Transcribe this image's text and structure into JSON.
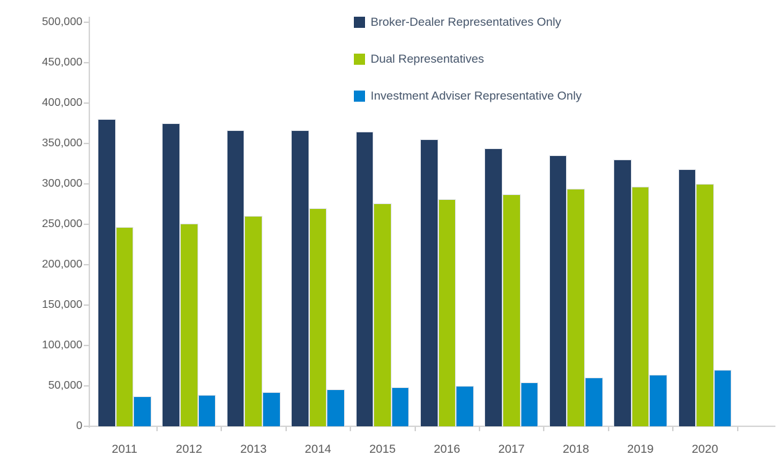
{
  "chart_data": {
    "type": "bar",
    "title": "",
    "xlabel": "",
    "ylabel": "",
    "categories": [
      "2011",
      "2012",
      "2013",
      "2014",
      "2015",
      "2016",
      "2017",
      "2018",
      "2019",
      "2020"
    ],
    "series": [
      {
        "name": "Broker-Dealer Representatives Only",
        "color": "#243E63",
        "values": [
          380000,
          375000,
          366000,
          366000,
          364000,
          355000,
          344000,
          335000,
          330000,
          318000
        ]
      },
      {
        "name": "Dual Representatives",
        "color": "#A0C60A",
        "values": [
          246000,
          251000,
          260000,
          270000,
          276000,
          281000,
          287000,
          294000,
          296000,
          300000
        ]
      },
      {
        "name": "Investment Adviser Representative Only",
        "color": "#0081D1",
        "values": [
          37000,
          39000,
          42000,
          46000,
          48000,
          50000,
          54000,
          60000,
          64000,
          70000
        ]
      }
    ],
    "ylim": [
      0,
      500000
    ],
    "ytick_step": 50000,
    "y_tick_labels": [
      "0",
      "50,000",
      "100,000",
      "150,000",
      "200,000",
      "250,000",
      "300,000",
      "350,000",
      "400,000",
      "450,000",
      "500,000"
    ],
    "grid": "off",
    "axis_ticks": "outside",
    "legend_position": "top-center"
  },
  "colors": {
    "background": "#FFFFFF",
    "axis_line": "#D6D6D6",
    "tick_mark": "#D2D2D2",
    "axis_label_text": "#595959",
    "legend_text": "#44546A"
  }
}
